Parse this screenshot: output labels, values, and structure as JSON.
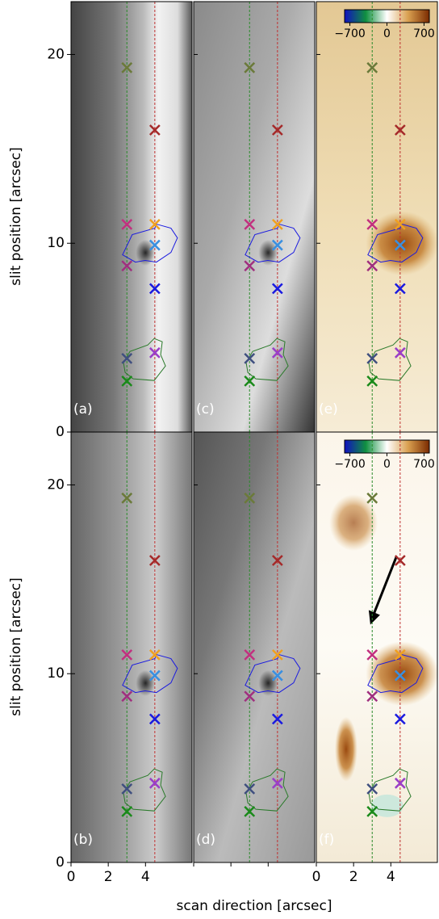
{
  "chart_data": {
    "type": "image-grid",
    "xlabel": "scan direction [arcsec]",
    "ylabel": "slit position [arcsec]",
    "xlim": [
      0,
      6.5
    ],
    "ylim": [
      0,
      22.8
    ],
    "xticks": [
      0,
      2,
      4
    ],
    "yticks": [
      0,
      10,
      20
    ],
    "panels": [
      {
        "label": "(a)",
        "style": "gray"
      },
      {
        "label": "(c)",
        "style": "gray"
      },
      {
        "label": "(e)",
        "style": "doppler"
      },
      {
        "label": "(b)",
        "style": "gray"
      },
      {
        "label": "(d)",
        "style": "gray"
      },
      {
        "label": "(f)",
        "style": "doppler"
      }
    ],
    "guides": [
      {
        "x": 3,
        "color": "#2a8a2a"
      },
      {
        "x": 4.5,
        "color": "#c03030"
      }
    ],
    "points": {
      "x": [
        3,
        4.5,
        3,
        4.5,
        4.5,
        3,
        4.5,
        3,
        4.5,
        3
      ],
      "values": [
        19.3,
        16,
        11,
        11,
        9.9,
        8.8,
        7.6,
        3.9,
        4.2,
        2.7
      ],
      "colors": [
        "#6b7a3a",
        "#a52a2a",
        "#c2307f",
        "#f0a020",
        "#3a8fe0",
        "#a0307f",
        "#1a1ae0",
        "#3f4f7f",
        "#9a3fc8",
        "#1a8a1a"
      ]
    },
    "colorbar": {
      "lim": [
        -800,
        800
      ],
      "ticks": [
        {
          "value": -700,
          "label": "−700"
        },
        0,
        700
      ]
    }
  }
}
